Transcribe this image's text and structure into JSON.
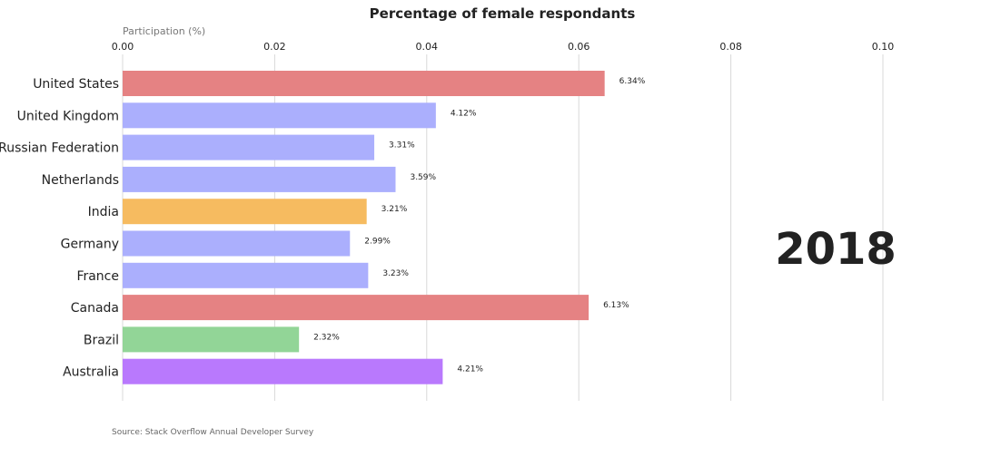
{
  "chart_data": {
    "type": "bar",
    "orientation": "horizontal",
    "title": "Percentage of female respondants",
    "xlabel": "Participation (%)",
    "xlim": [
      0,
      0.1
    ],
    "x_ticks": [
      "0.00",
      "0.02",
      "0.04",
      "0.06",
      "0.08",
      "0.10"
    ],
    "categories": [
      "United States",
      "United Kingdom",
      "Russian Federation",
      "Netherlands",
      "India",
      "Germany",
      "France",
      "Canada",
      "Brazil",
      "Australia"
    ],
    "values": [
      0.0634,
      0.0412,
      0.0331,
      0.0359,
      0.0321,
      0.0299,
      0.0323,
      0.0613,
      0.0232,
      0.0421
    ],
    "value_labels": [
      "6.34%",
      "4.12%",
      "3.31%",
      "3.59%",
      "3.21%",
      "2.99%",
      "3.23%",
      "6.13%",
      "2.32%",
      "4.21%"
    ],
    "colors": [
      "#e58283",
      "#abaffd",
      "#abaffd",
      "#abaffd",
      "#f6bb60",
      "#abaffd",
      "#abaffd",
      "#e58283",
      "#92d597",
      "#b979fd"
    ],
    "grid": true,
    "year": "2018",
    "source": "Source: Stack Overflow Annual Developer Survey"
  }
}
